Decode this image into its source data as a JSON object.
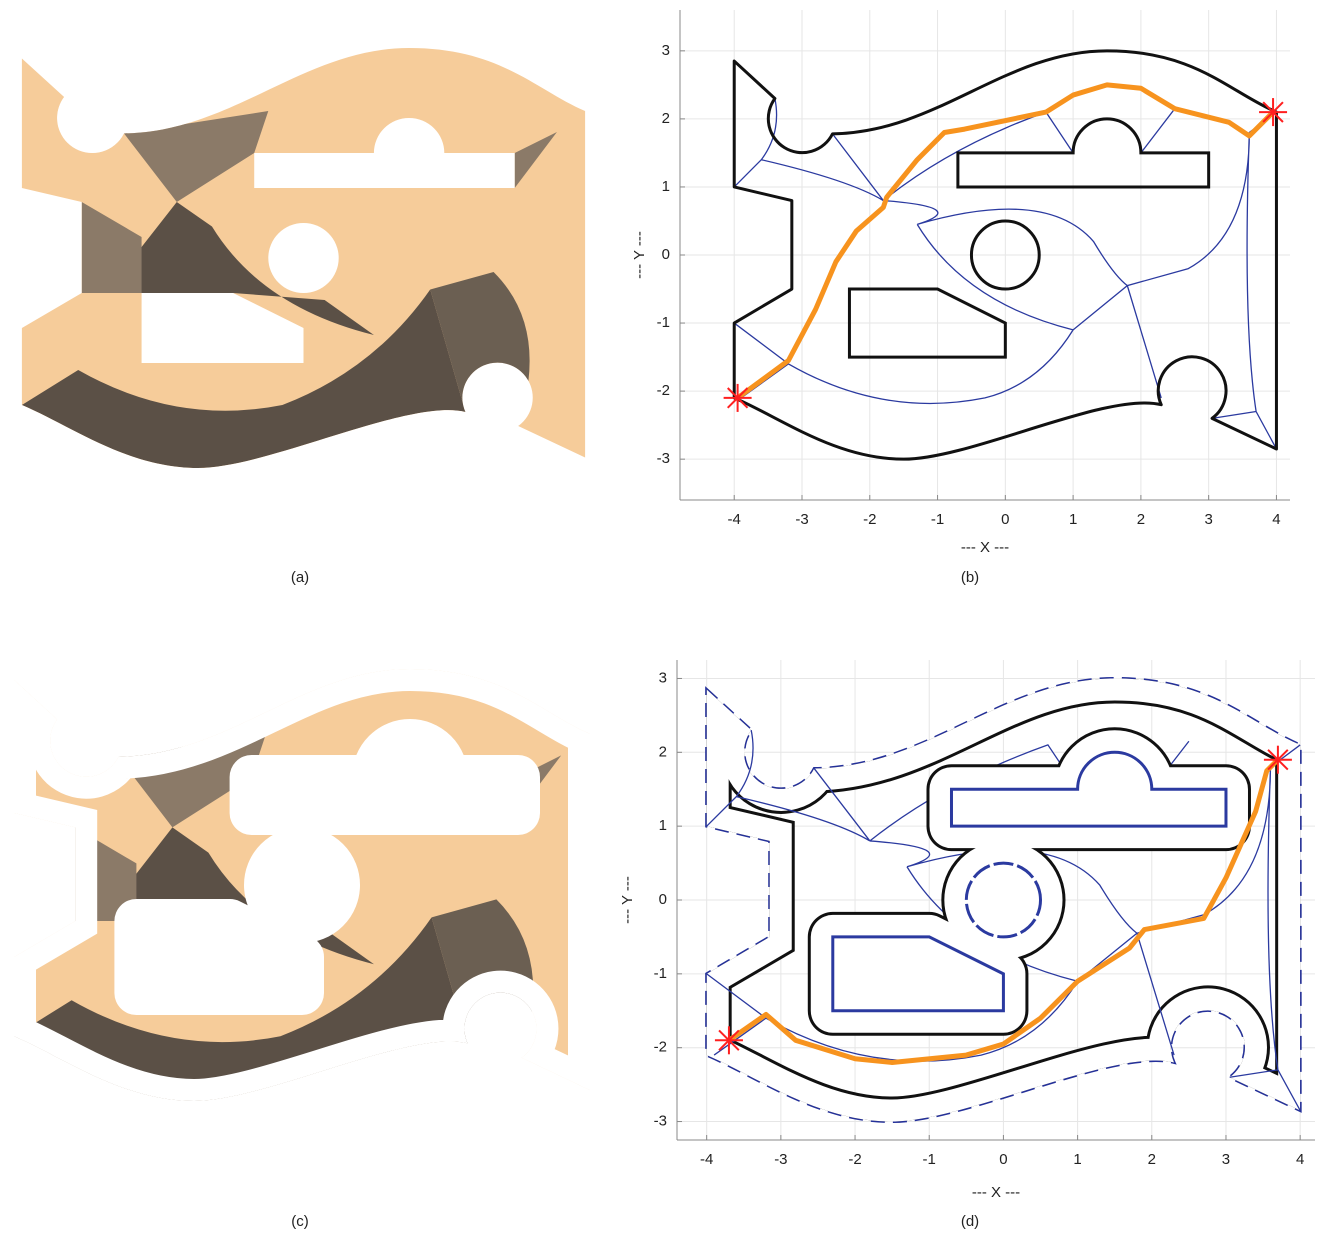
{
  "captions": [
    "(a)",
    "(b)",
    "(c)",
    "(d)"
  ],
  "chart_data": [
    {
      "type": "line",
      "xlabel": "--- X ---",
      "ylabel": "--- Y ---",
      "xlim": [
        -4.8,
        4.2
      ],
      "ylim": [
        -3.6,
        3.6
      ],
      "xticks": [
        -4,
        -3,
        -2,
        -1,
        0,
        1,
        2,
        3,
        4
      ],
      "yticks": [
        -3,
        -2,
        -1,
        0,
        1,
        2,
        3
      ],
      "grid": true,
      "path": {
        "color": "#f7931e",
        "x": [
          -3.95,
          -3.2,
          -2.8,
          -2.5,
          -2.2,
          -1.8,
          -1.75,
          -1.3,
          -0.9,
          -0.6,
          0.6,
          1.0,
          1.5,
          2.0,
          2.5,
          3.3,
          3.6,
          3.95
        ],
        "y": [
          -2.1,
          -1.55,
          -0.8,
          -0.1,
          0.35,
          0.7,
          0.85,
          1.4,
          1.8,
          1.85,
          2.1,
          2.35,
          2.5,
          2.45,
          2.15,
          1.95,
          1.75,
          2.1
        ]
      },
      "markers": {
        "color": "#ff1f1f",
        "x": [
          -3.95,
          3.95
        ],
        "y": [
          -2.1,
          2.1
        ]
      }
    },
    {
      "type": "line",
      "xlabel": "--- X ---",
      "ylabel": "--- Y ---",
      "xlim": [
        -4.4,
        4.2
      ],
      "ylim": [
        -3.25,
        3.25
      ],
      "xticks": [
        -4,
        -3,
        -2,
        -1,
        0,
        1,
        2,
        3,
        4
      ],
      "yticks": [
        -3,
        -2,
        -1,
        0,
        1,
        2,
        3
      ],
      "grid": true,
      "path": {
        "color": "#f7931e",
        "x": [
          -3.7,
          -3.2,
          -2.8,
          -2,
          -1.5,
          -0.5,
          0,
          0.5,
          1,
          1.7,
          1.9,
          2.7,
          3.0,
          3.4,
          3.55,
          3.7
        ],
        "y": [
          -1.9,
          -1.55,
          -1.9,
          -2.15,
          -2.2,
          -2.1,
          -1.95,
          -1.6,
          -1.1,
          -0.65,
          -0.4,
          -0.25,
          0.3,
          1.2,
          1.75,
          1.9
        ]
      },
      "markers": {
        "color": "#ff1f1f",
        "x": [
          -3.7,
          3.7
        ],
        "y": [
          -1.9,
          1.9
        ]
      }
    }
  ]
}
